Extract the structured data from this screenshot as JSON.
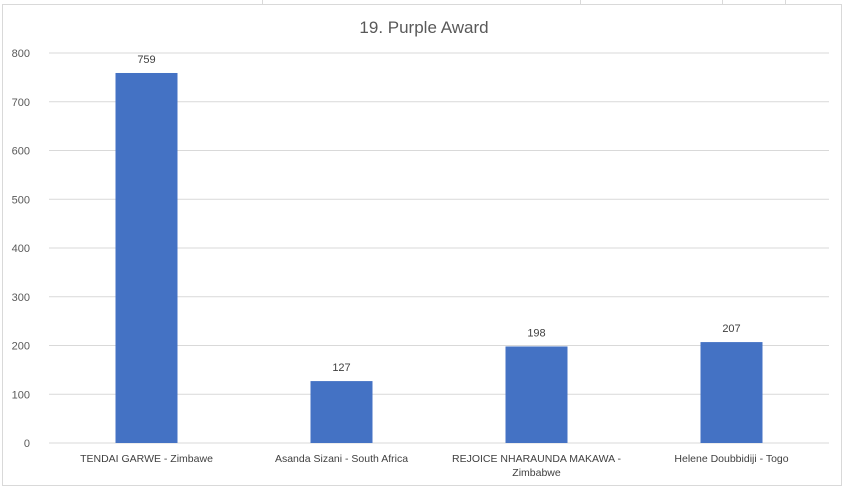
{
  "chart_data": {
    "type": "bar",
    "title": "19. Purple Award",
    "xlabel": "",
    "ylabel": "",
    "ylim": [
      0,
      800
    ],
    "yticks": [
      0,
      100,
      200,
      300,
      400,
      500,
      600,
      700,
      800
    ],
    "grid": true,
    "legend": "none",
    "categories": [
      [
        "TENDAI GARWE - Zimbawe"
      ],
      [
        "Asanda Sizani - South Africa"
      ],
      [
        "REJOICE NHARAUNDA MAKAWA -",
        "Zimbabwe"
      ],
      [
        "Helene Doubbidiji - Togo"
      ]
    ],
    "values": [
      759,
      127,
      198,
      207
    ],
    "bar_color": "#4472c4",
    "grid_color": "#d9d9d9"
  }
}
